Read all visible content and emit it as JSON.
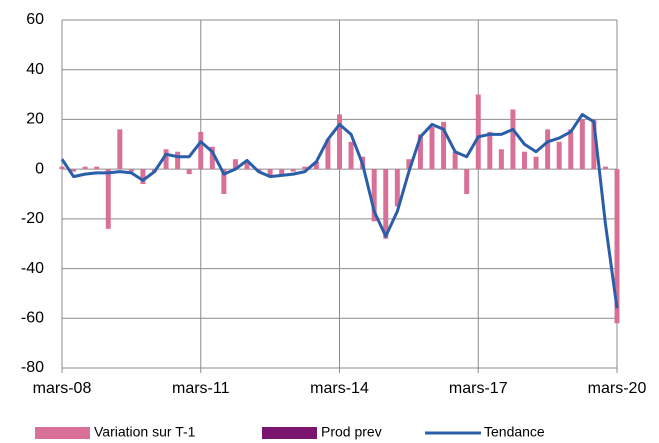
{
  "chart_data": {
    "type": "bar-line",
    "categories": [
      "mars-08",
      null,
      null,
      null,
      null,
      null,
      null,
      null,
      null,
      null,
      null,
      null,
      "mars-11",
      null,
      null,
      null,
      null,
      null,
      null,
      null,
      null,
      null,
      null,
      null,
      "mars-14",
      null,
      null,
      null,
      null,
      null,
      null,
      null,
      null,
      null,
      null,
      null,
      "mars-17",
      null,
      null,
      null,
      null,
      null,
      null,
      null,
      null,
      null,
      null,
      null,
      "mars-20"
    ],
    "series": [
      {
        "name": "Variation sur T-1",
        "color": "#d87097",
        "kind": "bar",
        "values": [
          1,
          -1,
          1,
          1,
          -24,
          16,
          -1,
          -6,
          -1,
          8,
          7,
          -2,
          15,
          9,
          -10,
          4,
          3,
          -1,
          -3,
          -2,
          -1,
          1,
          3,
          12,
          22,
          11,
          5,
          -21,
          -28,
          -15,
          4,
          14,
          17,
          19,
          7,
          -10,
          30,
          15,
          8,
          24,
          7,
          5,
          16,
          11,
          16,
          20,
          20,
          1,
          -62
        ]
      },
      {
        "name": "Prod prev",
        "color": "#7b1670",
        "kind": "bar",
        "values": [
          null,
          null,
          null,
          null,
          null,
          null,
          null,
          null,
          null,
          null,
          null,
          null,
          null,
          null,
          null,
          null,
          null,
          null,
          null,
          null,
          null,
          null,
          null,
          null,
          null,
          null,
          null,
          null,
          null,
          null,
          null,
          null,
          null,
          null,
          null,
          null,
          null,
          null,
          null,
          null,
          null,
          null,
          null,
          null,
          null,
          null,
          null,
          null,
          null
        ]
      },
      {
        "name": "Tendance",
        "color": "#2a5ea8",
        "kind": "line",
        "values": [
          4,
          -3,
          -2,
          -1.5,
          -1.5,
          -1,
          -1.5,
          -4.5,
          -1,
          6,
          5,
          5,
          11,
          7,
          -2,
          0,
          3.5,
          -1,
          -3,
          -2.5,
          -2,
          -1,
          3,
          12,
          18,
          14,
          2,
          -17,
          -27,
          -17,
          -1,
          13,
          18,
          16,
          7,
          5,
          13,
          14,
          14,
          16,
          10,
          7,
          11,
          12.5,
          15,
          22,
          19,
          -22,
          -56
        ]
      }
    ],
    "ylim": [
      -80,
      60
    ],
    "yticks": [
      -80,
      -60,
      -40,
      -20,
      0,
      20,
      40,
      60
    ],
    "grid": true
  }
}
